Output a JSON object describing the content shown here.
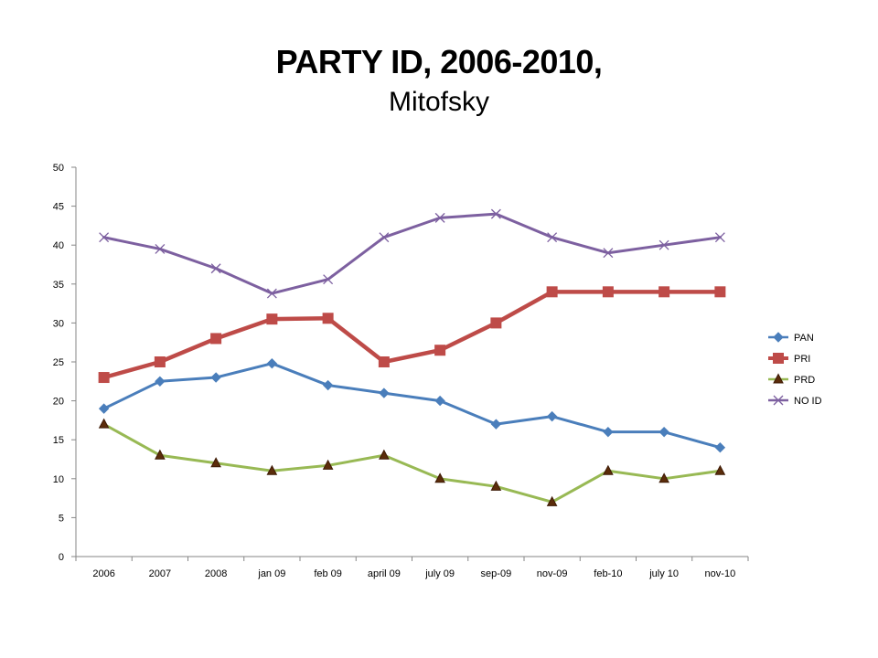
{
  "chart_data": {
    "type": "line",
    "title": "PARTY ID, 2006-2010,",
    "subtitle": "Mitofsky",
    "categories": [
      "2006",
      "2007",
      "2008",
      "jan 09",
      "feb 09",
      "april 09",
      "july 09",
      "sep-09",
      "nov-09",
      "feb-10",
      "july 10",
      "nov-10"
    ],
    "ylim": [
      0,
      50
    ],
    "yticks": [
      0,
      5,
      10,
      15,
      20,
      25,
      30,
      35,
      40,
      45,
      50
    ],
    "grid": false,
    "legend_position": "right",
    "series": [
      {
        "name": "PAN",
        "color": "#4a7ebb",
        "marker": "diamond",
        "width": 3,
        "values": [
          19,
          22.5,
          23,
          24.8,
          22,
          21,
          20,
          17,
          18,
          16,
          16,
          14
        ]
      },
      {
        "name": "PRI",
        "color": "#be4b48",
        "marker": "square",
        "width": 4.5,
        "values": [
          23,
          25,
          28,
          30.5,
          30.6,
          25,
          26.5,
          30,
          34,
          34,
          34,
          34
        ]
      },
      {
        "name": "PRD",
        "color": "#98b954",
        "marker": "triangle",
        "width": 3,
        "values": [
          17,
          13,
          12,
          11,
          11.7,
          13,
          10,
          9,
          7,
          11,
          10,
          11
        ]
      },
      {
        "name": "NO ID",
        "color": "#7d60a0",
        "marker": "x",
        "width": 3,
        "values": [
          41,
          39.5,
          37,
          33.8,
          35.6,
          41,
          43.5,
          44,
          41,
          39,
          40,
          41
        ]
      }
    ]
  }
}
